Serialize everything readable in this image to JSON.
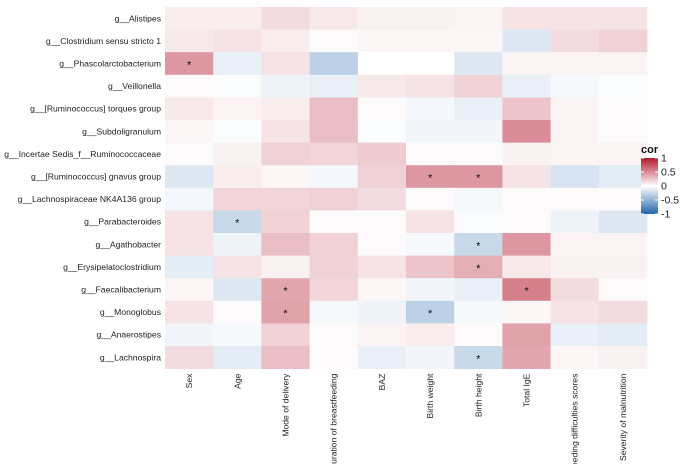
{
  "chart_data": {
    "type": "heatmap",
    "title": "",
    "rows": [
      "g__Alistipes",
      "g__Clostridium sensu stricto 1",
      "g__Phascolarctobacterium",
      "g__Veillonella",
      "g__[Ruminococcus] torques group",
      "g__Subdoligranulum",
      "g__Incertae Sedis_f__Ruminococcaceae",
      "g__[Ruminococcus] gnavus group",
      "g__Lachnospiraceae NK4A136 group",
      "g__Parabacteroides",
      "g__Agathobacter",
      "g__Erysipelatoclostridium",
      "g__Faecalibacterium",
      "g__Monoglobus",
      "g__Anaerostipes",
      "g__Lachnospira"
    ],
    "columns": [
      "Sex",
      "Age",
      "Mode of delivery",
      "Duration of breastfeeding",
      "BAZ",
      "Birth weight",
      "Birth height",
      "Total IgE",
      "Feeding difficulties scores",
      "Severity of malnutrition"
    ],
    "values": [
      [
        0.08,
        0.08,
        0.15,
        0.1,
        0.06,
        0.06,
        0.05,
        0.12,
        0.12,
        0.12
      ],
      [
        0.1,
        0.12,
        0.08,
        0.02,
        0.04,
        0.04,
        0.04,
        -0.15,
        0.15,
        0.2
      ],
      [
        0.45,
        -0.1,
        0.12,
        -0.3,
        0.0,
        0.0,
        -0.15,
        0.05,
        0.05,
        0.05
      ],
      [
        0.02,
        -0.02,
        -0.08,
        -0.1,
        0.1,
        0.12,
        0.2,
        -0.1,
        -0.04,
        -0.02
      ],
      [
        0.1,
        0.05,
        0.08,
        0.28,
        0.02,
        -0.05,
        -0.1,
        0.25,
        0.05,
        0.02
      ],
      [
        0.04,
        -0.02,
        0.12,
        0.28,
        -0.02,
        -0.06,
        -0.06,
        0.5,
        0.05,
        0.02
      ],
      [
        0.02,
        0.06,
        0.2,
        0.18,
        0.22,
        0.02,
        0.02,
        0.06,
        0.05,
        0.05
      ],
      [
        -0.15,
        0.08,
        0.04,
        -0.05,
        0.2,
        0.45,
        0.45,
        0.12,
        -0.18,
        -0.12
      ],
      [
        -0.05,
        0.18,
        0.18,
        0.2,
        0.15,
        0.02,
        -0.04,
        0.02,
        0.02,
        0.02
      ],
      [
        0.12,
        -0.25,
        0.2,
        0.02,
        0.02,
        0.12,
        -0.02,
        0.02,
        -0.08,
        -0.15
      ],
      [
        0.12,
        -0.08,
        0.28,
        0.2,
        0.02,
        -0.04,
        -0.25,
        0.45,
        0.05,
        0.05
      ],
      [
        -0.12,
        0.12,
        0.06,
        0.2,
        0.12,
        0.25,
        0.35,
        0.1,
        0.06,
        0.06
      ],
      [
        0.04,
        -0.15,
        0.38,
        0.18,
        0.04,
        -0.06,
        -0.1,
        0.55,
        0.15,
        0.02
      ],
      [
        0.12,
        0.02,
        0.4,
        -0.04,
        -0.08,
        -0.3,
        -0.04,
        0.04,
        0.12,
        0.15
      ],
      [
        -0.06,
        -0.04,
        0.2,
        0.02,
        0.05,
        0.08,
        0.02,
        0.4,
        -0.1,
        -0.12
      ],
      [
        0.15,
        -0.12,
        0.28,
        0.02,
        -0.1,
        -0.06,
        -0.25,
        0.38,
        0.04,
        0.06
      ]
    ],
    "significance_marker": "*",
    "significant": [
      [
        2,
        0
      ],
      [
        7,
        5
      ],
      [
        7,
        6
      ],
      [
        9,
        1
      ],
      [
        10,
        6
      ],
      [
        11,
        6
      ],
      [
        12,
        2
      ],
      [
        12,
        7
      ],
      [
        13,
        2
      ],
      [
        13,
        5
      ],
      [
        15,
        6
      ]
    ],
    "legend": {
      "title": "cor",
      "ticks": [
        1,
        0.5,
        0,
        -0.5,
        -1
      ],
      "placement": "right",
      "colors": {
        "low": "#2166ac",
        "mid": "#ffffff",
        "high": "#b2182b"
      }
    },
    "range": [
      -1,
      1
    ]
  }
}
